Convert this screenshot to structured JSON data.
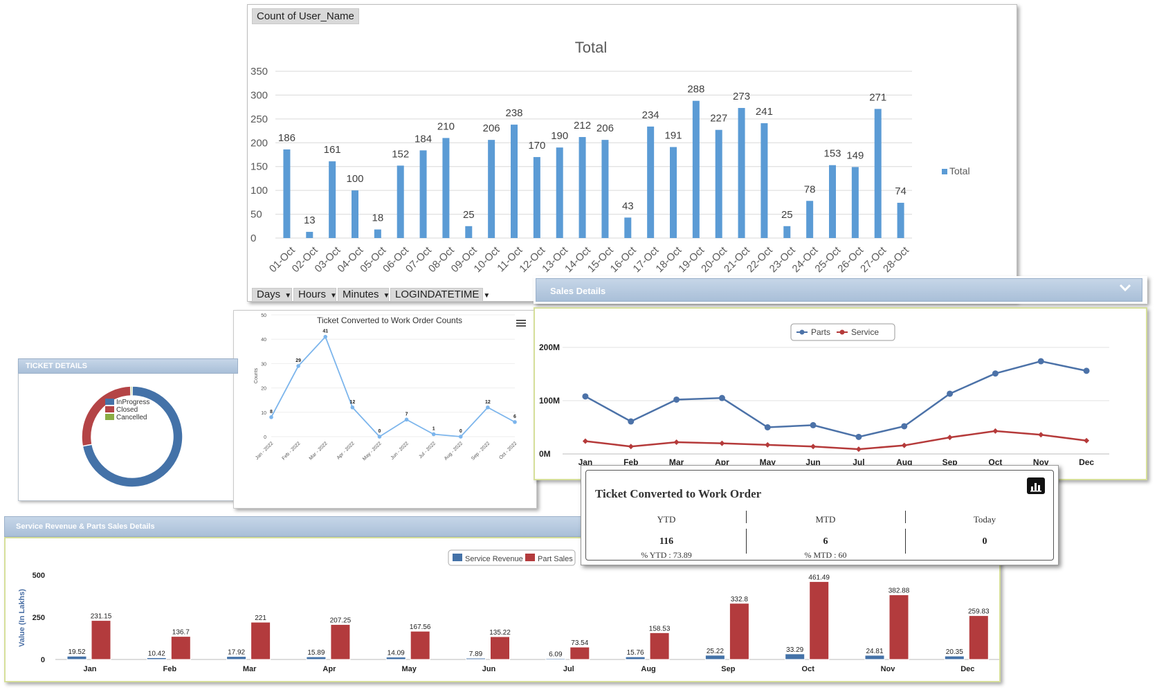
{
  "pivot": {
    "field_button": "Count of User_Name",
    "title": "Total",
    "legend": "Total",
    "bottom_buttons": [
      "Days",
      "Hours",
      "Minutes",
      "LOGINDATETIME"
    ],
    "color": "#5b9bd5",
    "chart_data": {
      "type": "bar",
      "categories": [
        "01-Oct",
        "02-Oct",
        "03-Oct",
        "04-Oct",
        "05-Oct",
        "06-Oct",
        "07-Oct",
        "08-Oct",
        "09-Oct",
        "10-Oct",
        "11-Oct",
        "12-Oct",
        "13-Oct",
        "14-Oct",
        "15-Oct",
        "16-Oct",
        "17-Oct",
        "18-Oct",
        "19-Oct",
        "20-Oct",
        "21-Oct",
        "22-Oct",
        "23-Oct",
        "24-Oct",
        "25-Oct",
        "26-Oct",
        "27-Oct",
        "28-Oct"
      ],
      "values": [
        186,
        13,
        161,
        100,
        18,
        152,
        184,
        210,
        25,
        206,
        238,
        170,
        190,
        212,
        206,
        43,
        234,
        191,
        288,
        227,
        273,
        241,
        25,
        78,
        153,
        149,
        271,
        74
      ],
      "yticks": [
        "0",
        "50",
        "100",
        "150",
        "200",
        "250",
        "300",
        "350"
      ],
      "ylim": [
        0,
        350
      ]
    }
  },
  "ticket": {
    "header": "TICKET DETAILS",
    "legend": [
      {
        "label": "InProgress",
        "color": "#4472a8"
      },
      {
        "label": "Closed",
        "color": "#b44446"
      },
      {
        "label": "Cancelled",
        "color": "#8bad45"
      }
    ],
    "chart_data": {
      "type": "pie",
      "labels": [
        "InProgress",
        "Closed",
        "Cancelled"
      ],
      "values": [
        72,
        27.5,
        0.5
      ]
    }
  },
  "counts": {
    "title": "Ticket Converted to Work Order Counts",
    "ylabel": "Counts",
    "menu_icon": "hamburger-menu-icon",
    "color": "#7cb5ec",
    "chart_data": {
      "type": "line",
      "categories": [
        "Jan - 2022",
        "Feb - 2022",
        "Mar - 2022",
        "Apr - 2022",
        "May - 2022",
        "Jun - 2022",
        "Jul - 2022",
        "Aug - 2022",
        "Sep - 2022",
        "Oct - 2022"
      ],
      "values": [
        8,
        29,
        41,
        12,
        0,
        7,
        1,
        0,
        12,
        6
      ],
      "yticks": [
        "0",
        "10",
        "20",
        "30",
        "40",
        "50"
      ],
      "ylim": [
        0,
        50
      ]
    }
  },
  "sales": {
    "header": "Sales Details",
    "chevron_icon": "chevron-down-icon",
    "chart_data": {
      "type": "line",
      "categories": [
        "Jan",
        "Feb",
        "Mar",
        "Apr",
        "May",
        "Jun",
        "Jul",
        "Aug",
        "Sep",
        "Oct",
        "Nov",
        "Dec"
      ],
      "series": [
        {
          "name": "Parts",
          "color": "#4c72a8",
          "values": [
            108,
            61,
            102,
            105,
            50,
            54,
            32,
            52,
            113,
            151,
            174,
            156
          ]
        },
        {
          "name": "Service",
          "color": "#b53a3a",
          "values": [
            24,
            14,
            22,
            20,
            17,
            14,
            9,
            16,
            31,
            43,
            36,
            25
          ]
        }
      ],
      "yticks": [
        "0M",
        "100M",
        "200M"
      ],
      "ylim": [
        0,
        200
      ]
    }
  },
  "kpi": {
    "title": "Ticket Converted to Work Order",
    "chart_icon": "bar-chart-icon",
    "cols": [
      {
        "label": "YTD",
        "value": "116",
        "pct": "% YTD : 73.89"
      },
      {
        "label": "MTD",
        "value": "6",
        "pct": "% MTD : 60"
      },
      {
        "label": "Today",
        "value": "0",
        "pct": ""
      }
    ]
  },
  "revenue": {
    "header": "Service Revenue & Parts Sales Details",
    "ylabel": "Value (In Lakhs)",
    "chart_data": {
      "type": "bar",
      "categories": [
        "Jan",
        "Feb",
        "Mar",
        "Apr",
        "May",
        "Jun",
        "Jul",
        "Aug",
        "Sep",
        "Oct",
        "Nov",
        "Dec"
      ],
      "series": [
        {
          "name": "Service Revenue",
          "color": "#4472a8",
          "values": [
            19.52,
            10.42,
            17.92,
            15.89,
            14.09,
            7.89,
            6.09,
            15.76,
            25.22,
            33.29,
            24.81,
            20.35
          ]
        },
        {
          "name": "Part Sales",
          "color": "#b33b3d",
          "values": [
            231.15,
            136.7,
            221,
            207.25,
            167.56,
            135.22,
            73.54,
            158.53,
            332.8,
            461.49,
            382.88,
            259.83
          ]
        }
      ],
      "yticks": [
        "0",
        "250",
        "500"
      ],
      "ylim": [
        0,
        500
      ]
    }
  }
}
